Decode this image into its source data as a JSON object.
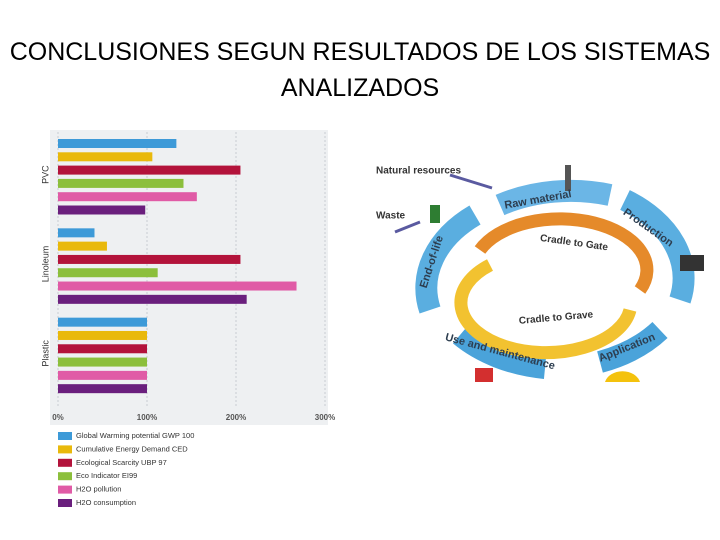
{
  "slide_title": "CONCLUSIONES SEGUN RESULTADOS DE LOS SISTEMAS ANALIZADOS",
  "chart_data": {
    "type": "hbar",
    "categories": [
      "PVC",
      "Linoleum",
      "Plastic"
    ],
    "series": [
      {
        "name": "Global Warming potential GWP 100",
        "color": "#3d9ad8",
        "values": [
          133,
          41,
          100
        ]
      },
      {
        "name": "Cumulative Energy Demand CED",
        "color": "#e9b90c",
        "values": [
          106,
          55,
          100
        ]
      },
      {
        "name": "Ecological Scarcity UBP 97",
        "color": "#b3133b",
        "values": [
          205,
          205,
          100
        ]
      },
      {
        "name": "Eco Indicator EI99",
        "color": "#8cbf3c",
        "values": [
          141,
          112,
          100
        ]
      },
      {
        "name": "H2O pollution",
        "color": "#e05ba6",
        "values": [
          156,
          268,
          100
        ]
      },
      {
        "name": "H2O consumption",
        "color": "#6a1f7d",
        "values": [
          98,
          212,
          100
        ]
      }
    ],
    "xlim": [
      0,
      300
    ],
    "xticks": [
      {
        "value": 0,
        "label": "0%"
      },
      {
        "value": 100,
        "label": "100%"
      },
      {
        "value": 200,
        "label": "200%"
      },
      {
        "value": 300,
        "label": "300%"
      }
    ],
    "grid": true
  },
  "diagram": {
    "natural_resources": "Natural resources",
    "waste": "Waste",
    "raw_material": "Raw material",
    "production": "Production",
    "cradle_to_gate": "Cradle to Gate",
    "cradle_to_grave": "Cradle to Grave",
    "use": "Use and maintenance",
    "application": "Application",
    "end_of_life": "End-of-life"
  }
}
